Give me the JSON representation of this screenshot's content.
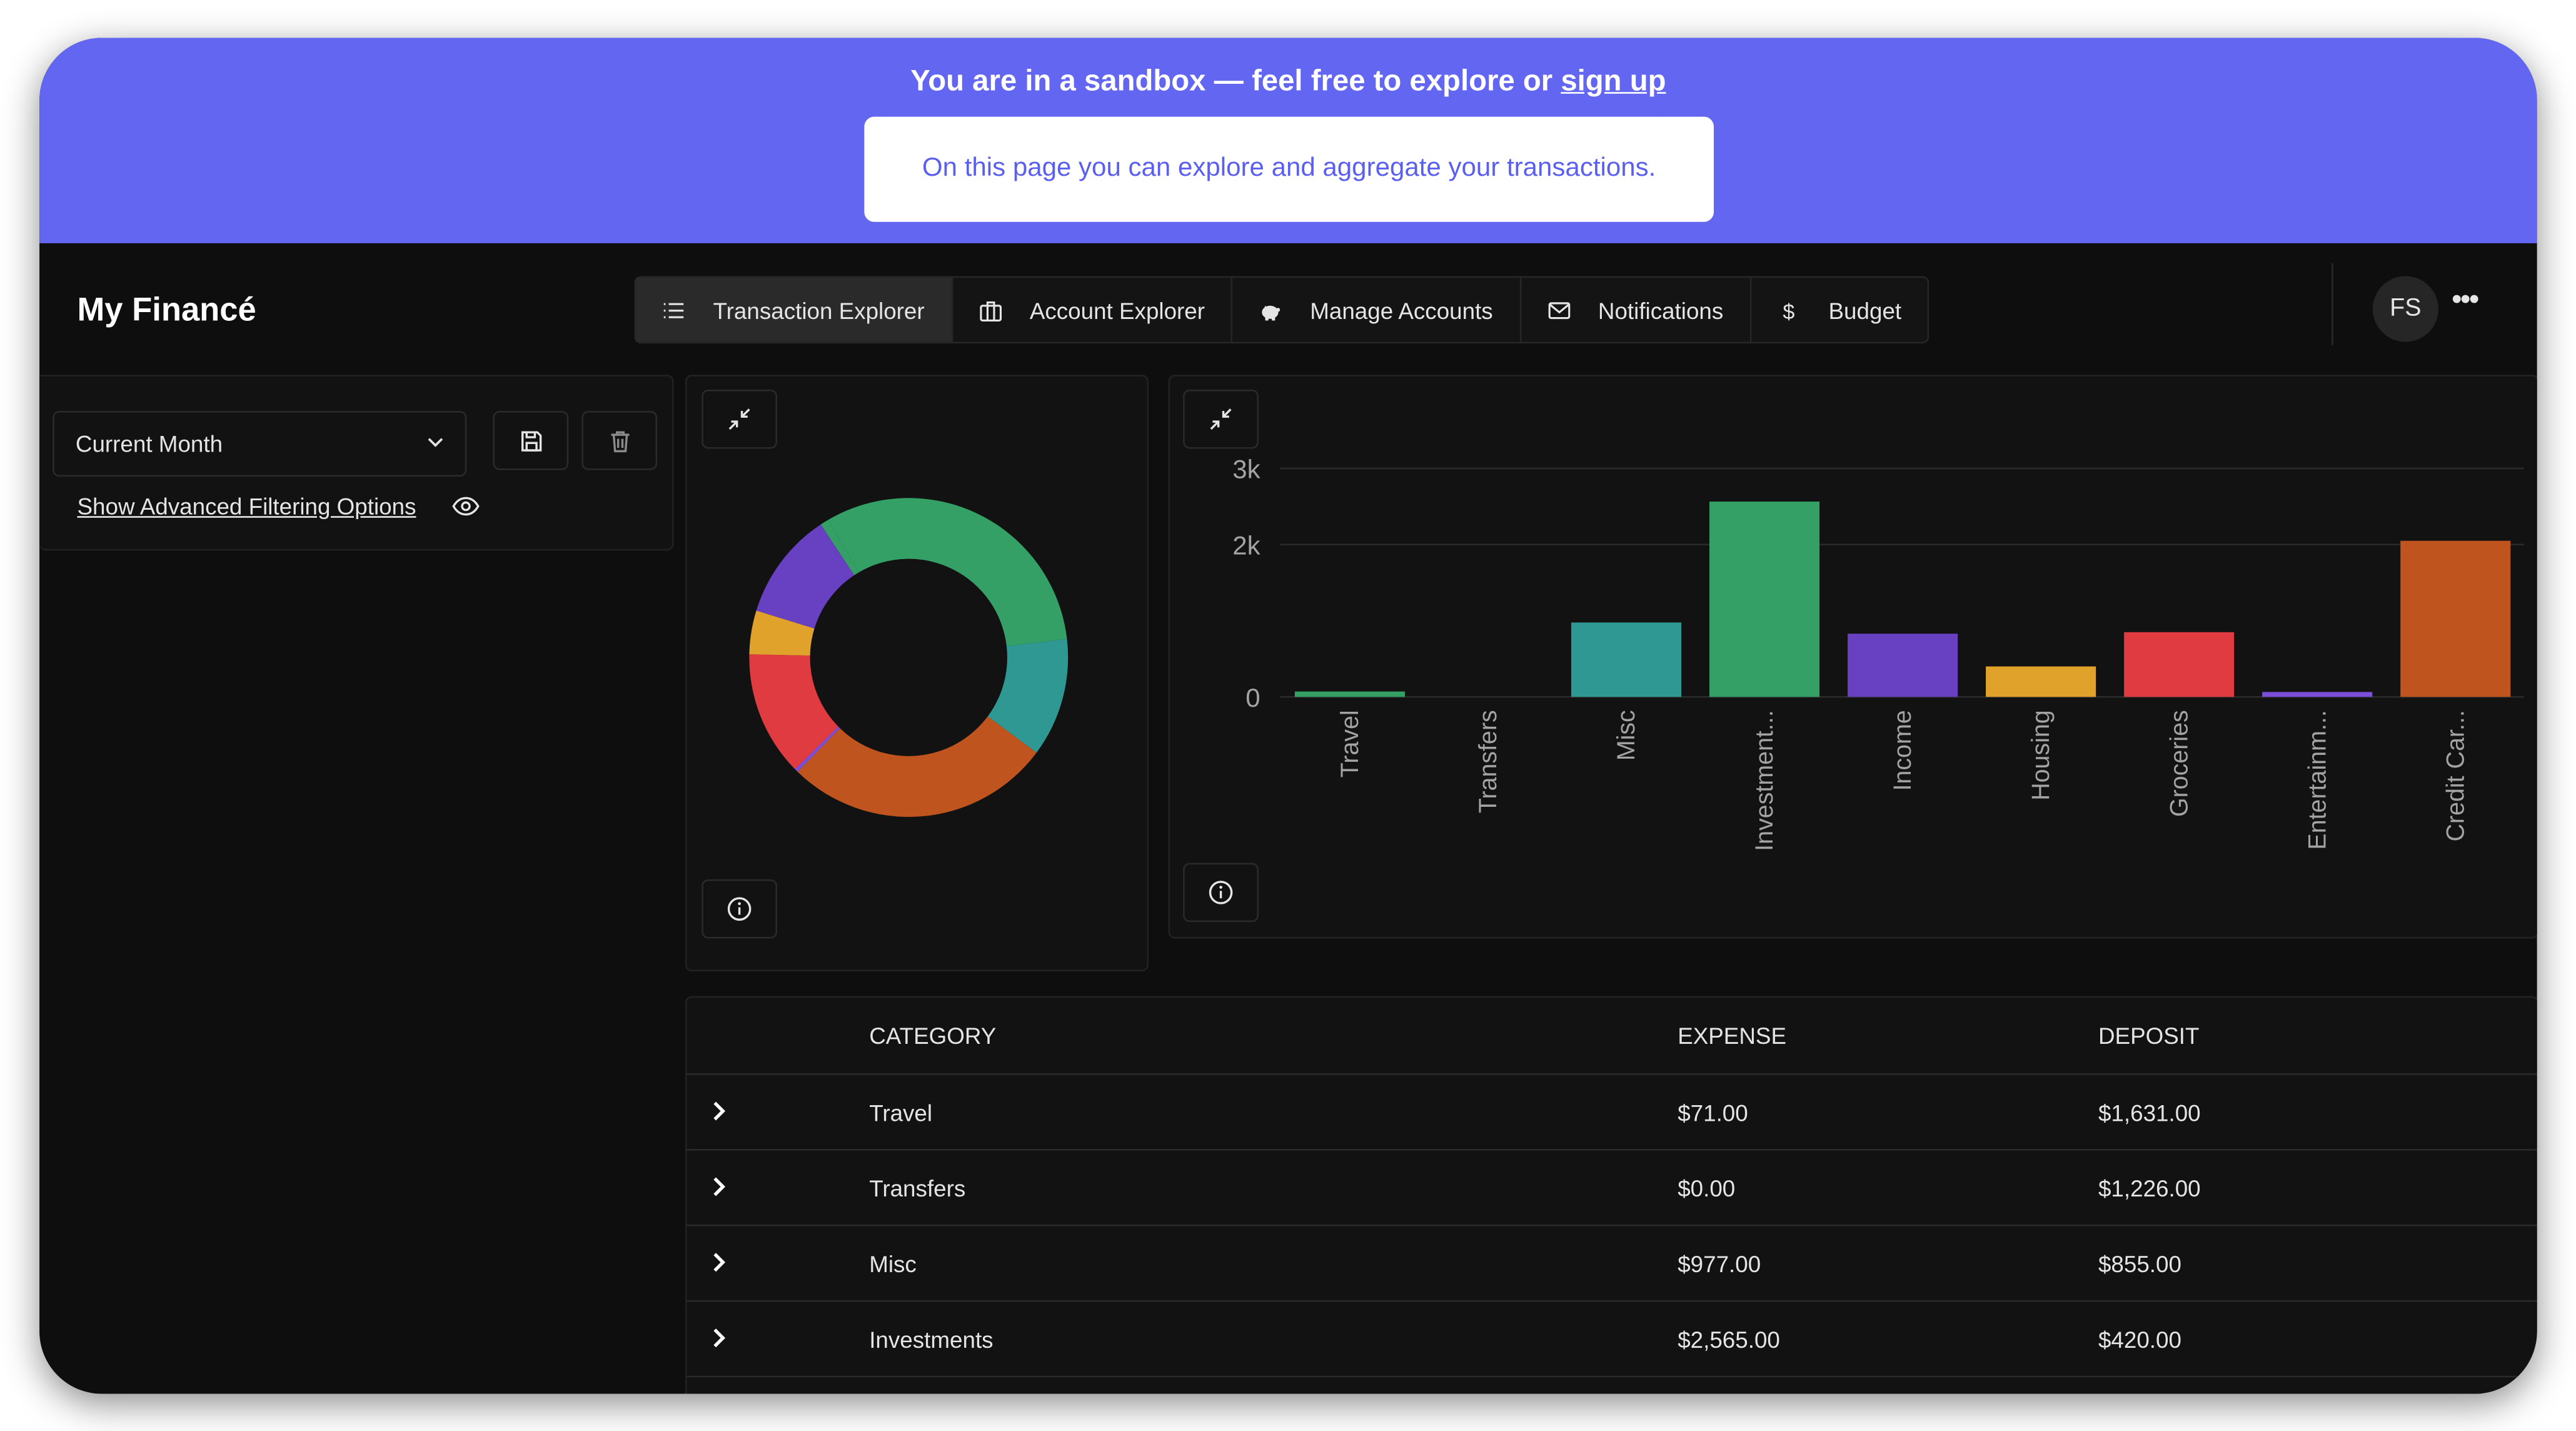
{
  "banner": {
    "title_text": "You are in a sandbox — feel free to explore or ",
    "signup_label": "sign up",
    "message": "On this page you can explore and aggregate your transactions."
  },
  "app": {
    "title": "My Financé"
  },
  "nav": {
    "tabs": [
      {
        "label": "Transaction Explorer",
        "icon": "list-icon",
        "active": true
      },
      {
        "label": "Account Explorer",
        "icon": "briefcase-icon",
        "active": false
      },
      {
        "label": "Manage Accounts",
        "icon": "piggy-bank-icon",
        "active": false
      },
      {
        "label": "Notifications",
        "icon": "mail-icon",
        "active": false
      },
      {
        "label": "Budget",
        "icon": "dollar-icon",
        "active": false
      }
    ]
  },
  "user": {
    "initials": "FS",
    "menu_icon": "more-horizontal-icon"
  },
  "filters": {
    "period_value": "Current Month",
    "advanced_label": "Show Advanced Filtering Options",
    "save_icon": "save-icon",
    "delete_icon": "trash-icon"
  },
  "colors": {
    "accent": "#6366f1",
    "travel": "#34a065",
    "transfers": "#22c55e",
    "misc": "#2f9893",
    "investments": "#34a065",
    "income": "#6840c2",
    "housing": "#e0a22b",
    "groceries": "#e13b42",
    "entertainment": "#7b4fd8",
    "credit_card": "#c0541f"
  },
  "chart_data": [
    {
      "type": "pie",
      "variant": "donut",
      "title": "",
      "slices": [
        {
          "value": 2565,
          "color": "#34a065"
        },
        {
          "value": 977,
          "color": "#2f9893"
        },
        {
          "value": 2200,
          "color": "#c0541f"
        },
        {
          "value": 30,
          "color": "#7b4fd8"
        },
        {
          "value": 1030,
          "color": "#e13b42"
        },
        {
          "value": 360,
          "color": "#e0a22b"
        },
        {
          "value": 890,
          "color": "#6840c2"
        },
        {
          "value": 71,
          "color": "#34a065"
        }
      ]
    },
    {
      "type": "bar",
      "title": "",
      "xlabel": "",
      "ylabel": "",
      "ylim": [
        0,
        3000
      ],
      "yticks": [
        "0",
        "2k",
        "3k"
      ],
      "ytick_values": [
        0,
        2000,
        3000
      ],
      "grid": true,
      "categories": [
        "Travel",
        "Transfers",
        "Misc",
        "Investment...",
        "Income",
        "Housing",
        "Groceries",
        "Entertainm...",
        "Credit Car..."
      ],
      "values": [
        71,
        0,
        977,
        2565,
        830,
        400,
        850,
        30,
        2050
      ],
      "colors": [
        "#34a065",
        "#34a065",
        "#2f9893",
        "#34a065",
        "#6840c2",
        "#e0a22b",
        "#e13b42",
        "#7b4fd8",
        "#c0541f"
      ]
    }
  ],
  "table": {
    "headers": {
      "category": "CATEGORY",
      "expense": "EXPENSE",
      "deposit": "DEPOSIT"
    },
    "rows": [
      {
        "category": "Travel",
        "expense": "$71.00",
        "deposit": "$1,631.00"
      },
      {
        "category": "Transfers",
        "expense": "$0.00",
        "deposit": "$1,226.00"
      },
      {
        "category": "Misc",
        "expense": "$977.00",
        "deposit": "$855.00"
      },
      {
        "category": "Investments",
        "expense": "$2,565.00",
        "deposit": "$420.00"
      }
    ]
  }
}
